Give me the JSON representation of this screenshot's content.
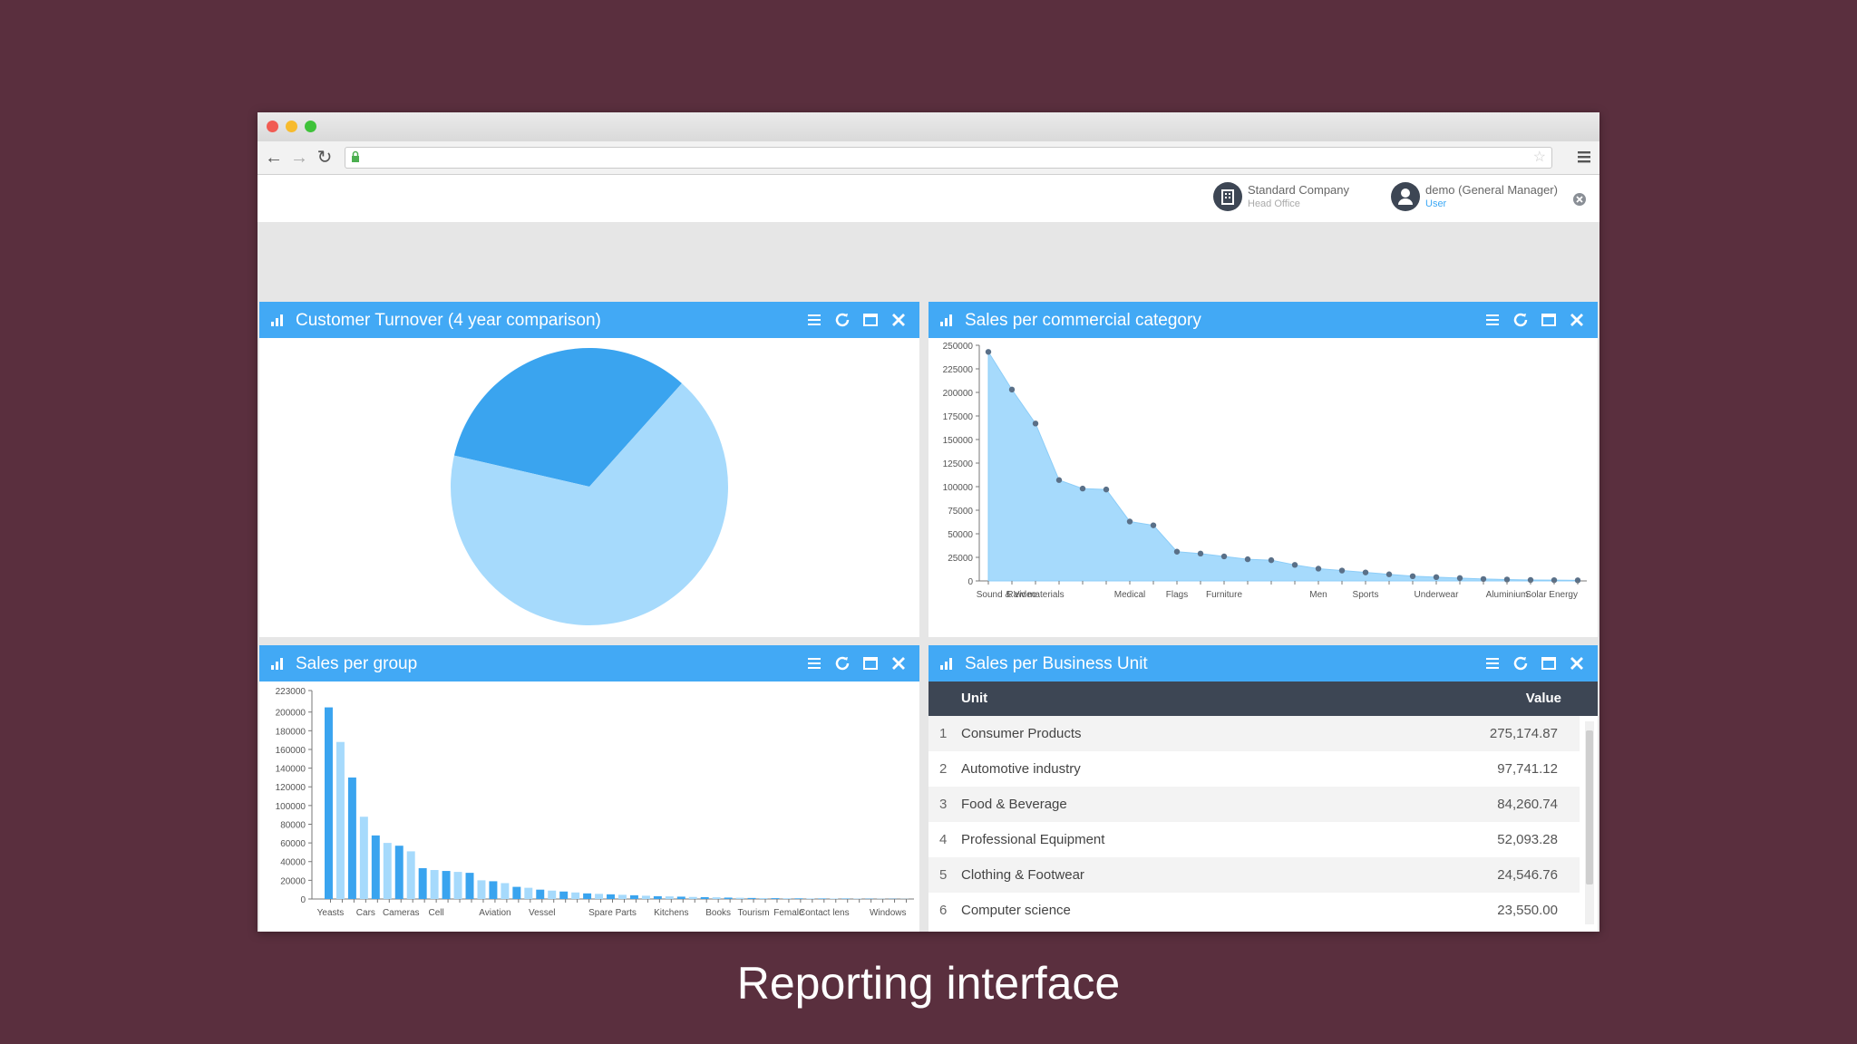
{
  "colors": {
    "background": "#5a2f3e",
    "panel_header": "#42a9f5",
    "table_header": "#3d4654",
    "series_dark": "#3aa4ef",
    "series_light": "#a6dafc"
  },
  "browser": {
    "icons": [
      "back-arrow-icon",
      "forward-arrow-icon",
      "reload-icon",
      "lock-icon",
      "star-icon",
      "menu-icon"
    ]
  },
  "header": {
    "company": {
      "name": "Standard Company",
      "subtitle": "Head Office"
    },
    "user": {
      "name": "demo (General Manager)",
      "role": "User"
    }
  },
  "panels": {
    "customer_turnover": {
      "title": "Customer Turnover (4 year comparison)"
    },
    "sales_commercial": {
      "title": "Sales per commercial category"
    },
    "sales_group": {
      "title": "Sales per group"
    },
    "sales_business_unit": {
      "title": "Sales per Business Unit"
    }
  },
  "table": {
    "col_unit": "Unit",
    "col_value": "Value",
    "rows": [
      {
        "idx": "1",
        "unit": "Consumer Products",
        "value": "275,174.87"
      },
      {
        "idx": "2",
        "unit": "Automotive industry",
        "value": "97,741.12"
      },
      {
        "idx": "3",
        "unit": "Food & Beverage",
        "value": "84,260.74"
      },
      {
        "idx": "4",
        "unit": "Professional Equipment",
        "value": "52,093.28"
      },
      {
        "idx": "5",
        "unit": "Clothing & Footwear",
        "value": "24,546.76"
      },
      {
        "idx": "6",
        "unit": "Computer science",
        "value": "23,550.00"
      }
    ]
  },
  "caption": "Reporting interface",
  "chart_data": [
    {
      "type": "pie",
      "slices": [
        {
          "value": 0.33,
          "color": "#3aa4ef"
        },
        {
          "value": 0.67,
          "color": "#a6dafc"
        }
      ]
    },
    {
      "type": "area",
      "ylim": [
        0,
        250000
      ],
      "yticks": [
        0,
        25000,
        50000,
        75000,
        100000,
        125000,
        150000,
        175000,
        200000,
        225000,
        250000
      ],
      "xlabels": [
        "Sound & Video",
        "Raw materials",
        "Medical",
        "Flags",
        "Furniture",
        "Men",
        "Sports",
        "Underwear",
        "Aluminium",
        "Solar Energy"
      ],
      "values": [
        243000,
        203000,
        167000,
        107000,
        98000,
        97000,
        63000,
        59000,
        31000,
        29000,
        26000,
        23000,
        22000,
        17000,
        13000,
        11000,
        9000,
        7000,
        5000,
        4000,
        3000,
        2000,
        1500,
        1000,
        800,
        600
      ]
    },
    {
      "type": "bar",
      "ylim": [
        0,
        223000
      ],
      "yticks": [
        0,
        20000,
        40000,
        60000,
        80000,
        100000,
        120000,
        140000,
        160000,
        180000,
        200000,
        223000
      ],
      "xlabels": [
        "Yeasts",
        "Cars",
        "Cameras",
        "Cell",
        "Aviation",
        "Vessel",
        "Spare Parts",
        "Kitchens",
        "Books",
        "Tourism",
        "Female",
        "Contact lens",
        "Windows"
      ],
      "values": [
        205000,
        168000,
        130000,
        88000,
        68000,
        60000,
        57000,
        51000,
        33000,
        31000,
        30000,
        29000,
        28000,
        20000,
        19000,
        17000,
        13000,
        12000,
        10000,
        9000,
        8000,
        7000,
        6000,
        5500,
        5000,
        4500,
        4000,
        3500,
        3000,
        2800,
        2500,
        2200,
        2000,
        1800,
        1500,
        1300,
        1100,
        1000,
        900,
        800,
        700,
        600,
        550,
        500,
        450,
        400,
        350,
        300,
        250,
        200
      ]
    }
  ]
}
